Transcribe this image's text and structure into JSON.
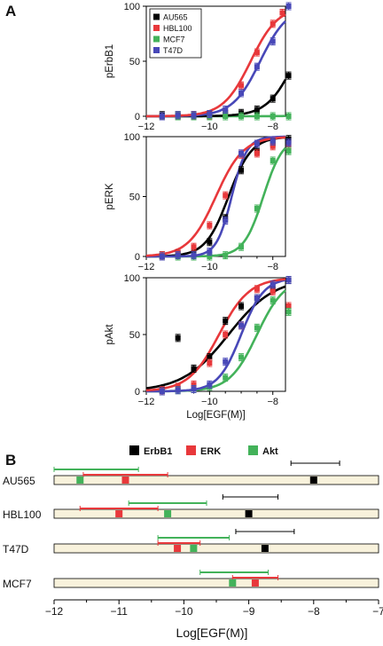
{
  "panel_a_label": "A",
  "panel_b_label": "B",
  "colors": {
    "AU565": "#000000",
    "HBL100": "#e8383b",
    "MCF7": "#43b25a",
    "T47D": "#4848b8",
    "bar_fill": "#f8f2dc"
  },
  "chart_data": [
    {
      "type": "scatter",
      "ylabel": "pErbB1",
      "xlabel": "",
      "xlim": [
        -12,
        -7.6
      ],
      "ylim": [
        0,
        100
      ],
      "xticks": [
        -12,
        -10,
        -8
      ],
      "yticks": [
        0,
        50,
        100
      ],
      "legend_position": "top-left",
      "series": [
        {
          "name": "AU565",
          "points": [
            [
              -11.5,
              1
            ],
            [
              -11,
              1
            ],
            [
              -10.5,
              1
            ],
            [
              -10,
              1
            ],
            [
              -9.5,
              2
            ],
            [
              -9,
              3
            ],
            [
              -8.5,
              6
            ],
            [
              -8,
              16
            ],
            [
              -7.5,
              37
            ]
          ],
          "fit_ec50": -7.3,
          "fit_hill": 1.0
        },
        {
          "name": "HBL100",
          "points": [
            [
              -11.5,
              0
            ],
            [
              -11,
              0
            ],
            [
              -10.5,
              1
            ],
            [
              -10,
              1
            ],
            [
              -9.5,
              4
            ],
            [
              -9,
              28
            ],
            [
              -8.5,
              58
            ],
            [
              -8,
              84
            ],
            [
              -7.7,
              94
            ]
          ],
          "fit_ec50": -8.7,
          "fit_hill": 1.0
        },
        {
          "name": "MCF7",
          "points": [
            [
              -11.5,
              0
            ],
            [
              -11,
              0
            ],
            [
              -10.5,
              0
            ],
            [
              -10,
              0
            ],
            [
              -9.5,
              0
            ],
            [
              -9,
              0
            ],
            [
              -8.5,
              0
            ],
            [
              -8,
              0
            ],
            [
              -7.5,
              0
            ]
          ],
          "fit_ec50": -5,
          "fit_hill": 1.0
        },
        {
          "name": "T47D",
          "points": [
            [
              -11.5,
              0
            ],
            [
              -11,
              1
            ],
            [
              -10.5,
              1
            ],
            [
              -10,
              2
            ],
            [
              -9.5,
              6
            ],
            [
              -9,
              21
            ],
            [
              -8.5,
              45
            ],
            [
              -8,
              68
            ],
            [
              -7.5,
              100
            ]
          ],
          "fit_ec50": -8.4,
          "fit_hill": 1.0
        }
      ]
    },
    {
      "type": "scatter",
      "ylabel": "pERK",
      "xlabel": "",
      "xlim": [
        -12,
        -7.6
      ],
      "ylim": [
        0,
        100
      ],
      "xticks": [
        -12,
        -10,
        -8
      ],
      "yticks": [
        0,
        50,
        100
      ],
      "series": [
        {
          "name": "AU565",
          "points": [
            [
              -11.5,
              1
            ],
            [
              -11,
              2
            ],
            [
              -10.5,
              3
            ],
            [
              -10,
              12
            ],
            [
              -9.5,
              32
            ],
            [
              -9,
              72
            ],
            [
              -8.5,
              88
            ],
            [
              -8,
              95
            ],
            [
              -7.5,
              98
            ]
          ],
          "fit_ec50": -9.4,
          "fit_hill": 1.2
        },
        {
          "name": "HBL100",
          "points": [
            [
              -11.5,
              1
            ],
            [
              -11,
              3
            ],
            [
              -10.5,
              8
            ],
            [
              -10,
              26
            ],
            [
              -9.5,
              51
            ],
            [
              -9,
              85
            ],
            [
              -8.5,
              86
            ],
            [
              -8,
              92
            ],
            [
              -7.5,
              93
            ]
          ],
          "fit_ec50": -9.8,
          "fit_hill": 1.0
        },
        {
          "name": "MCF7",
          "points": [
            [
              -11.5,
              0
            ],
            [
              -11,
              0
            ],
            [
              -10.5,
              0
            ],
            [
              -10,
              0
            ],
            [
              -9.5,
              1
            ],
            [
              -9,
              8
            ],
            [
              -8.5,
              40
            ],
            [
              -8,
              80
            ],
            [
              -7.5,
              88
            ]
          ],
          "fit_ec50": -8.3,
          "fit_hill": 1.4
        },
        {
          "name": "T47D",
          "points": [
            [
              -11.5,
              0
            ],
            [
              -11,
              1
            ],
            [
              -10.5,
              1
            ],
            [
              -10,
              4
            ],
            [
              -9.5,
              30
            ],
            [
              -9,
              86
            ],
            [
              -8.5,
              94
            ],
            [
              -8,
              96
            ],
            [
              -7.5,
              95
            ]
          ],
          "fit_ec50": -9.3,
          "fit_hill": 1.8
        }
      ]
    },
    {
      "type": "scatter",
      "ylabel": "pAkt",
      "xlabel": "Log[EGF(M)]",
      "xlim": [
        -12,
        -7.6
      ],
      "ylim": [
        0,
        100
      ],
      "xticks": [
        -12,
        -10,
        -8
      ],
      "yticks": [
        0,
        50,
        100
      ],
      "series": [
        {
          "name": "AU565",
          "points": [
            [
              -11.5,
              2
            ],
            [
              -11,
              47
            ],
            [
              -10.5,
              20
            ],
            [
              -10,
              30
            ],
            [
              -9.5,
              62
            ],
            [
              -9,
              75
            ],
            [
              -8.5,
              82
            ],
            [
              -8,
              90
            ],
            [
              -7.5,
              98
            ]
          ],
          "fit_ec50": -9.4,
          "fit_hill": 0.6
        },
        {
          "name": "HBL100",
          "points": [
            [
              -11.5,
              1
            ],
            [
              -11,
              4
            ],
            [
              -10.5,
              6
            ],
            [
              -10,
              25
            ],
            [
              -9.5,
              50
            ],
            [
              -9,
              58
            ],
            [
              -8.5,
              90
            ],
            [
              -8,
              88
            ],
            [
              -7.5,
              75
            ]
          ],
          "fit_ec50": -9.7,
          "fit_hill": 0.9
        },
        {
          "name": "MCF7",
          "points": [
            [
              -11.5,
              0
            ],
            [
              -11,
              1
            ],
            [
              -10.5,
              2
            ],
            [
              -10,
              4
            ],
            [
              -9.5,
              12
            ],
            [
              -9,
              30
            ],
            [
              -8.5,
              56
            ],
            [
              -8,
              80
            ],
            [
              -7.5,
              70
            ]
          ],
          "fit_ec50": -8.5,
          "fit_hill": 1.0
        },
        {
          "name": "T47D",
          "points": [
            [
              -11.5,
              0
            ],
            [
              -11,
              1
            ],
            [
              -10.5,
              2
            ],
            [
              -10,
              6
            ],
            [
              -9.5,
              26
            ],
            [
              -9,
              58
            ],
            [
              -8.5,
              82
            ],
            [
              -8,
              94
            ],
            [
              -7.5,
              98
            ]
          ],
          "fit_ec50": -9.0,
          "fit_hill": 1.2
        }
      ]
    },
    {
      "type": "interval",
      "xlabel": "Log[EGF(M)]",
      "xlim": [
        -12,
        -7
      ],
      "xticks": [
        -12,
        -11,
        -10,
        -9,
        -8,
        -7
      ],
      "legend": [
        "ErbB1",
        "ERK",
        "Akt"
      ],
      "rows": [
        {
          "label": "AU565",
          "ErbB1": {
            "ec50": -8.0,
            "ci": [
              -8.35,
              -7.6
            ]
          },
          "ERK": {
            "ec50": -10.9,
            "ci": [
              -11.55,
              -10.25
            ]
          },
          "Akt": {
            "ec50": -11.6,
            "ci": [
              -12.0,
              -10.7
            ]
          }
        },
        {
          "label": "HBL100",
          "ErbB1": {
            "ec50": -9.0,
            "ci": [
              -9.4,
              -8.55
            ]
          },
          "ERK": {
            "ec50": -11.0,
            "ci": [
              -11.6,
              -10.4
            ]
          },
          "Akt": {
            "ec50": -10.25,
            "ci": [
              -10.85,
              -9.65
            ]
          }
        },
        {
          "label": "T47D",
          "ErbB1": {
            "ec50": -8.75,
            "ci": [
              -9.2,
              -8.3
            ]
          },
          "ERK": {
            "ec50": -10.1,
            "ci": [
              -10.4,
              -9.75
            ]
          },
          "Akt": {
            "ec50": -9.85,
            "ci": [
              -10.4,
              -9.3
            ]
          }
        },
        {
          "label": "MCF7",
          "ErbB1": {
            "ec50": null,
            "ci": null
          },
          "ERK": {
            "ec50": -8.9,
            "ci": [
              -9.25,
              -8.55
            ]
          },
          "Akt": {
            "ec50": -9.25,
            "ci": [
              -9.75,
              -8.7
            ]
          }
        }
      ]
    }
  ]
}
